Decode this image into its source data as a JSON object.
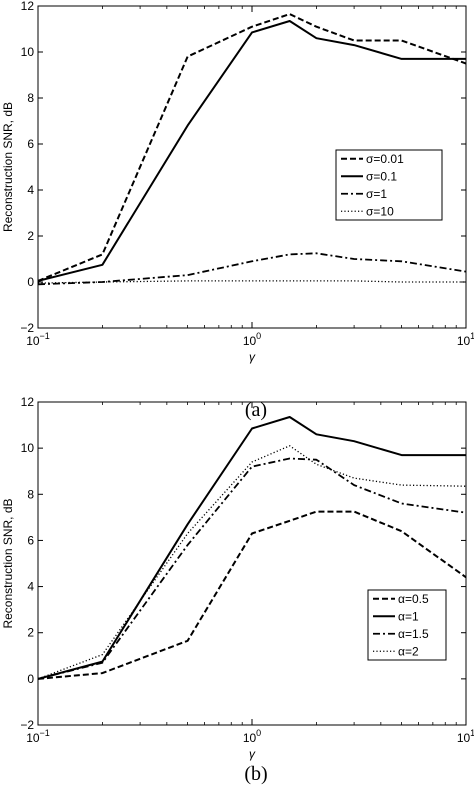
{
  "chart_data": [
    {
      "type": "line",
      "caption": "(a)",
      "xlabel": "γ",
      "ylabel": "Reconstruction SNR, dB",
      "xscale": "log",
      "xlim": [
        0.1,
        10
      ],
      "ylim": [
        -2,
        12
      ],
      "xticks": [
        0.1,
        1,
        10
      ],
      "xtick_labels": [
        {
          "base": "10",
          "exp": "−1"
        },
        {
          "base": "10",
          "exp": "0"
        },
        {
          "base": "10",
          "exp": "1"
        }
      ],
      "yticks": [
        -2,
        0,
        2,
        4,
        6,
        8,
        10,
        12
      ],
      "ytick_labels": [
        "−2",
        "0",
        "2",
        "4",
        "6",
        "8",
        "10",
        "12"
      ],
      "grid": false,
      "legend_position": "right",
      "x": [
        0.1,
        0.2,
        0.5,
        1,
        1.5,
        2,
        3,
        5,
        10
      ],
      "series": [
        {
          "name": "σ=0.01",
          "style": "dashed",
          "values": [
            0.05,
            1.2,
            9.8,
            11.1,
            11.65,
            11.1,
            10.5,
            10.5,
            9.5
          ]
        },
        {
          "name": "σ=0.1",
          "style": "solid",
          "values": [
            0.05,
            0.75,
            6.8,
            10.85,
            11.35,
            10.6,
            10.3,
            9.7,
            9.7
          ]
        },
        {
          "name": "σ=1",
          "style": "dashdot",
          "values": [
            -0.1,
            0.0,
            0.3,
            0.9,
            1.2,
            1.25,
            1.0,
            0.9,
            0.45
          ]
        },
        {
          "name": "σ=10",
          "style": "dotted",
          "values": [
            -0.05,
            0.0,
            0.05,
            0.05,
            0.05,
            0.05,
            0.05,
            0.0,
            0.0
          ]
        }
      ]
    },
    {
      "type": "line",
      "caption": "(b)",
      "xlabel": "γ",
      "ylabel": "Reconstruction SNR, dB",
      "xscale": "log",
      "xlim": [
        0.1,
        10
      ],
      "ylim": [
        -2,
        12
      ],
      "xticks": [
        0.1,
        1,
        10
      ],
      "xtick_labels": [
        {
          "base": "10",
          "exp": "−1"
        },
        {
          "base": "10",
          "exp": "0"
        },
        {
          "base": "10",
          "exp": "1"
        }
      ],
      "yticks": [
        -2,
        0,
        2,
        4,
        6,
        8,
        10,
        12
      ],
      "ytick_labels": [
        "−2",
        "0",
        "2",
        "4",
        "6",
        "8",
        "10",
        "12"
      ],
      "grid": false,
      "legend_position": "bottom-right",
      "x": [
        0.1,
        0.2,
        0.5,
        1,
        1.5,
        2,
        3,
        5,
        10
      ],
      "series": [
        {
          "name": "α=0.5",
          "style": "dashed",
          "values": [
            0.0,
            0.25,
            1.65,
            6.3,
            6.85,
            7.25,
            7.25,
            6.4,
            4.4
          ]
        },
        {
          "name": "α=1",
          "style": "solid",
          "values": [
            0.0,
            0.75,
            6.7,
            10.85,
            11.35,
            10.6,
            10.3,
            9.7,
            9.7
          ]
        },
        {
          "name": "α=1.5",
          "style": "dashdot",
          "values": [
            0.0,
            0.7,
            5.8,
            9.2,
            9.55,
            9.5,
            8.4,
            7.6,
            7.2
          ]
        },
        {
          "name": "α=2",
          "style": "dotted",
          "values": [
            0.0,
            1.05,
            6.3,
            9.4,
            10.1,
            9.3,
            8.7,
            8.4,
            8.35
          ]
        }
      ]
    }
  ]
}
